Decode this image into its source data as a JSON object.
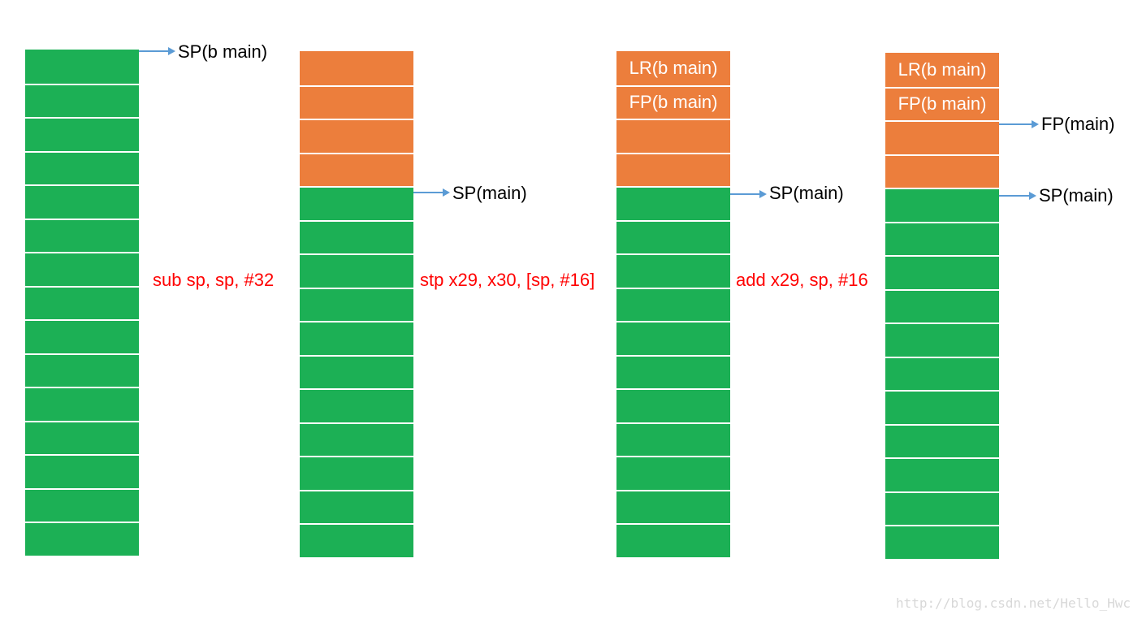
{
  "colors": {
    "green": "#1cb055",
    "orange": "#ec7e3c",
    "arrow": "#5b9bd5",
    "instruction": "#ff0000"
  },
  "stacks": [
    {
      "cells": [
        {
          "kind": "green",
          "text": ""
        },
        {
          "kind": "green",
          "text": ""
        },
        {
          "kind": "green",
          "text": ""
        },
        {
          "kind": "green",
          "text": ""
        },
        {
          "kind": "green",
          "text": ""
        },
        {
          "kind": "green",
          "text": ""
        },
        {
          "kind": "green",
          "text": ""
        },
        {
          "kind": "green",
          "text": ""
        },
        {
          "kind": "green",
          "text": ""
        },
        {
          "kind": "green",
          "text": ""
        },
        {
          "kind": "green",
          "text": ""
        },
        {
          "kind": "green",
          "text": ""
        },
        {
          "kind": "green",
          "text": ""
        },
        {
          "kind": "green",
          "text": ""
        },
        {
          "kind": "green",
          "text": ""
        }
      ]
    },
    {
      "cells": [
        {
          "kind": "orange",
          "text": ""
        },
        {
          "kind": "orange",
          "text": ""
        },
        {
          "kind": "orange",
          "text": ""
        },
        {
          "kind": "orange",
          "text": ""
        },
        {
          "kind": "green",
          "text": ""
        },
        {
          "kind": "green",
          "text": ""
        },
        {
          "kind": "green",
          "text": ""
        },
        {
          "kind": "green",
          "text": ""
        },
        {
          "kind": "green",
          "text": ""
        },
        {
          "kind": "green",
          "text": ""
        },
        {
          "kind": "green",
          "text": ""
        },
        {
          "kind": "green",
          "text": ""
        },
        {
          "kind": "green",
          "text": ""
        },
        {
          "kind": "green",
          "text": ""
        },
        {
          "kind": "green",
          "text": ""
        }
      ]
    },
    {
      "cells": [
        {
          "kind": "orange",
          "text": "LR(b main)"
        },
        {
          "kind": "orange",
          "text": "FP(b main)"
        },
        {
          "kind": "orange",
          "text": ""
        },
        {
          "kind": "orange",
          "text": ""
        },
        {
          "kind": "green",
          "text": ""
        },
        {
          "kind": "green",
          "text": ""
        },
        {
          "kind": "green",
          "text": ""
        },
        {
          "kind": "green",
          "text": ""
        },
        {
          "kind": "green",
          "text": ""
        },
        {
          "kind": "green",
          "text": ""
        },
        {
          "kind": "green",
          "text": ""
        },
        {
          "kind": "green",
          "text": ""
        },
        {
          "kind": "green",
          "text": ""
        },
        {
          "kind": "green",
          "text": ""
        },
        {
          "kind": "green",
          "text": ""
        }
      ]
    },
    {
      "cells": [
        {
          "kind": "orange",
          "text": "LR(b main)"
        },
        {
          "kind": "orange",
          "text": "FP(b main)"
        },
        {
          "kind": "orange",
          "text": ""
        },
        {
          "kind": "orange",
          "text": ""
        },
        {
          "kind": "green",
          "text": ""
        },
        {
          "kind": "green",
          "text": ""
        },
        {
          "kind": "green",
          "text": ""
        },
        {
          "kind": "green",
          "text": ""
        },
        {
          "kind": "green",
          "text": ""
        },
        {
          "kind": "green",
          "text": ""
        },
        {
          "kind": "green",
          "text": ""
        },
        {
          "kind": "green",
          "text": ""
        },
        {
          "kind": "green",
          "text": ""
        },
        {
          "kind": "green",
          "text": ""
        },
        {
          "kind": "green",
          "text": ""
        }
      ]
    }
  ],
  "pointers": {
    "sp_b_main": "SP(b main)",
    "sp_main_2": "SP(main)",
    "sp_main_3": "SP(main)",
    "fp_main_4": "FP(main)",
    "sp_main_4": "SP(main)"
  },
  "instructions": {
    "step1": "sub sp, sp, #32",
    "step2": "stp x29, x30, [sp, #16]",
    "step3": "add x29, sp, #16"
  },
  "watermark": "http://blog.csdn.net/Hello_Hwc"
}
